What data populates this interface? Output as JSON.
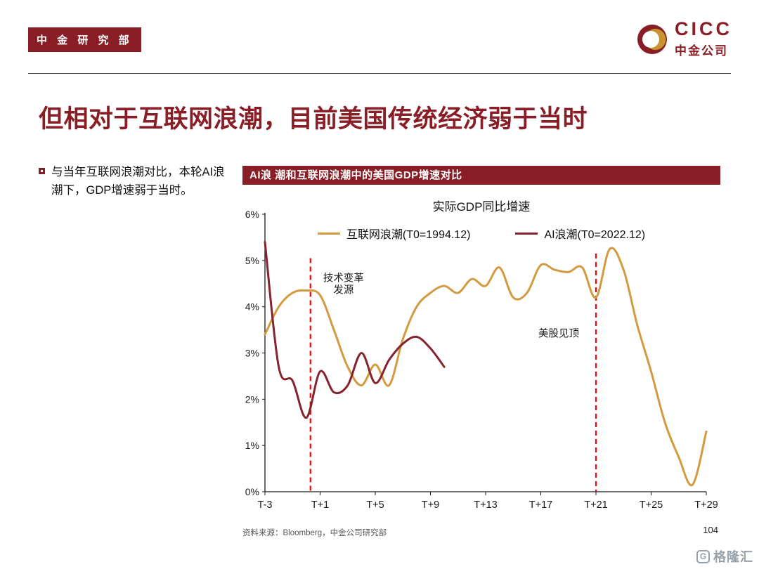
{
  "colors": {
    "brand": "#8A1E26",
    "internet_line": "#D39A3F",
    "ai_line": "#85232E",
    "dashed_line": "#FF0000"
  },
  "header": {
    "badge_label": "中 金 研 究 部",
    "logo_text": "CICC",
    "logo_subtext": "中金公司"
  },
  "slide_title": "但相对于互联网浪潮，目前美国传统经济弱于当时",
  "bullet_text": "与当年互联网浪潮对比，本轮AI浪潮下，GDP增速弱于当时。",
  "chart_panel_title": "AI浪 潮和互联网浪潮中的美国GDP增速对比",
  "chart_data": {
    "type": "line",
    "title": "实际GDP同比增速",
    "xlim": [
      -3,
      29
    ],
    "ylim": [
      0,
      6
    ],
    "grid": false,
    "legend_position": "top-center",
    "yticks": [
      "0%",
      "1%",
      "2%",
      "3%",
      "4%",
      "5%",
      "6%"
    ],
    "xticks": [
      {
        "t": -3,
        "label": "T-3"
      },
      {
        "t": 1,
        "label": "T+1"
      },
      {
        "t": 5,
        "label": "T+5"
      },
      {
        "t": 9,
        "label": "T+9"
      },
      {
        "t": 13,
        "label": "T+13"
      },
      {
        "t": 17,
        "label": "T+17"
      },
      {
        "t": 21,
        "label": "T+21"
      },
      {
        "t": 25,
        "label": "T+25"
      },
      {
        "t": 29,
        "label": "T+29"
      }
    ],
    "series": [
      {
        "name": "互联网浪潮(T0=1994.12)",
        "color": "#D39A3F",
        "x0": -3,
        "values": [
          3.4,
          4.0,
          4.3,
          4.35,
          4.25,
          3.5,
          2.7,
          2.3,
          2.75,
          2.3,
          3.3,
          4.0,
          4.3,
          4.45,
          4.3,
          4.6,
          4.45,
          4.85,
          4.2,
          4.3,
          4.9,
          4.8,
          4.75,
          4.85,
          4.2,
          5.25,
          4.8,
          3.6,
          2.6,
          1.5,
          0.75,
          0.15,
          1.3
        ]
      },
      {
        "name": "AI浪潮(T0=2022.12)",
        "color": "#85232E",
        "x0": -3,
        "values": [
          5.4,
          2.7,
          2.4,
          1.6,
          2.6,
          2.15,
          2.3,
          3.0,
          2.35,
          2.85,
          3.2,
          3.35,
          3.1,
          2.7
        ]
      }
    ],
    "vlines": [
      {
        "t": 0.3,
        "vmax": 5.05,
        "color": "#FF0000"
      },
      {
        "t": 21,
        "vmax": 5.15,
        "color": "#FF0000"
      }
    ],
    "annotations": [
      {
        "lines": [
          "技术变革",
          "发源"
        ],
        "t": 2.7,
        "v": 4.55
      },
      {
        "lines": [
          "美股见顶"
        ],
        "t": 18.3,
        "v": 3.35
      }
    ]
  },
  "footer": {
    "source": "资料来源：Bloomberg，中金公司研究部",
    "page_number": "104"
  },
  "watermark": {
    "logo_letter": "G",
    "brand": "格隆汇"
  }
}
